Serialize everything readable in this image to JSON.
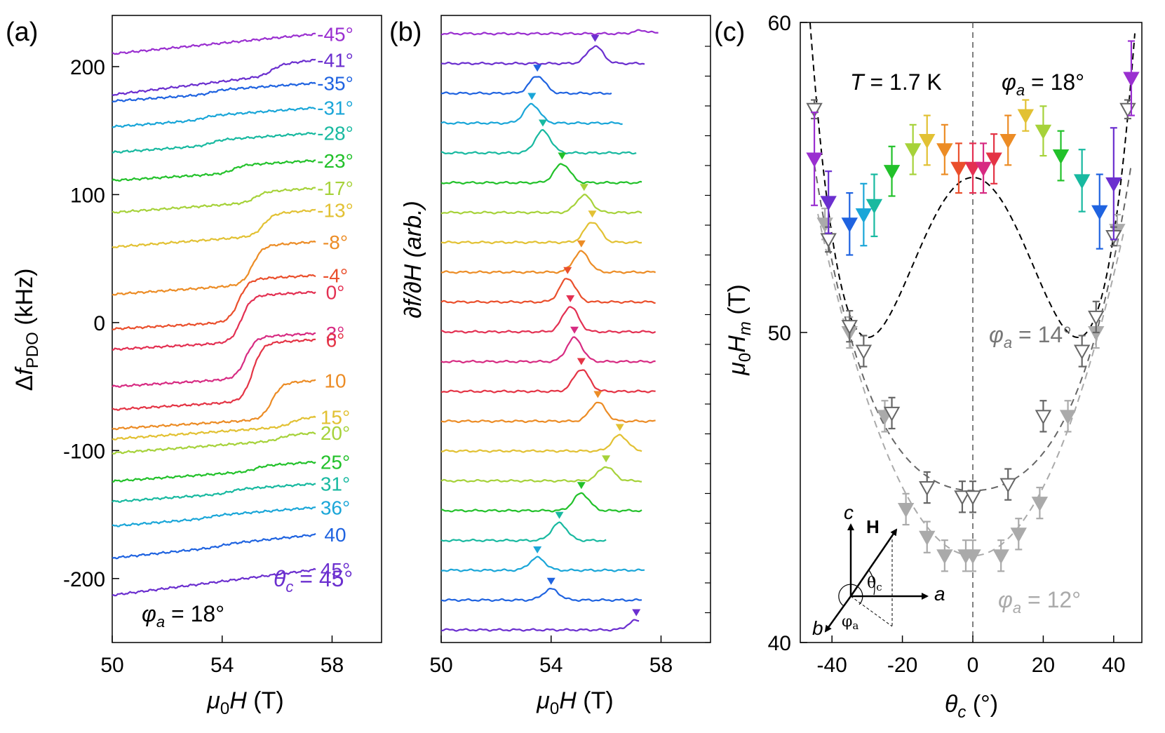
{
  "chart_data": [
    {
      "panel": "(a)",
      "type": "line",
      "xlabel_sym": "μ",
      "xlabel_sub": "0",
      "xlabel_var": "H",
      "xlabel_unit": " (T)",
      "ylabel_pre": "Δ",
      "ylabel_var": "f",
      "ylabel_sub": "PDO",
      "ylabel_unit": " (kHz)",
      "xlim": [
        50,
        59.8
      ],
      "ylim": [
        -250,
        240
      ],
      "xticks": [
        "50",
        "54",
        "58"
      ],
      "xtick_values": [
        50,
        54,
        58
      ],
      "yticks": [
        "-200",
        "-100",
        "0",
        "100",
        "200"
      ],
      "ytick_values": [
        -200,
        -100,
        0,
        100,
        200
      ],
      "annotation_sym": "φ",
      "annotation_sub": "a",
      "annotation_val": " = 18°",
      "theta_label_sym": "θ",
      "theta_label_sub": "c",
      "theta_label_val": " = 45°",
      "series": [
        {
          "label": "-45°",
          "color": "#9a2fd0",
          "offset": 210,
          "slope": 2.1,
          "step": 0,
          "stepx": 55,
          "end": 57.4
        },
        {
          "label": "-41°",
          "color": "#6b2fcf",
          "offset": 178,
          "slope": 2.6,
          "step": 8,
          "stepx": 55.8,
          "end": 57.4
        },
        {
          "label": "-35°",
          "color": "#1f63e0",
          "offset": 173,
          "slope": 1.5,
          "step": 3,
          "stepx": 53.6,
          "end": 57.4
        },
        {
          "label": "-31°",
          "color": "#1aa6d8",
          "offset": 153,
          "slope": 1.6,
          "step": 3,
          "stepx": 53.3,
          "end": 57.4
        },
        {
          "label": "-28°",
          "color": "#18b9a0",
          "offset": 133,
          "slope": 1.5,
          "step": 4,
          "stepx": 53.6,
          "end": 57.4
        },
        {
          "label": "-23°",
          "color": "#22c12a",
          "offset": 111,
          "slope": 1.3,
          "step": 6,
          "stepx": 54.4,
          "end": 57.4
        },
        {
          "label": "-17°",
          "color": "#a6d23a",
          "offset": 86,
          "slope": 1.5,
          "step": 8,
          "stepx": 55.2,
          "end": 57.4
        },
        {
          "label": "-13°",
          "color": "#e2c133",
          "offset": 59,
          "slope": 1.6,
          "step": 17,
          "stepx": 55.5,
          "end": 57.4
        },
        {
          "label": "-8°",
          "color": "#ec8c25",
          "offset": 22,
          "slope": 1.5,
          "step": 30,
          "stepx": 55.1,
          "end": 57.4
        },
        {
          "label": "-4°",
          "color": "#ea4f2c",
          "offset": -5,
          "slope": 1.2,
          "step": 33,
          "stepx": 54.6,
          "end": 57.4
        },
        {
          "label": "0°",
          "color": "#e33052",
          "offset": -21,
          "slope": 1.2,
          "step": 36,
          "stepx": 54.7,
          "end": 57.4
        },
        {
          "label": "3°",
          "color": "#d72b82",
          "offset": -50,
          "slope": 1.3,
          "step": 32,
          "stepx": 54.85,
          "end": 57.4
        },
        {
          "label": "6°",
          "color": "#e43445",
          "offset": -68,
          "slope": 1.3,
          "step": 45,
          "stepx": 55.1,
          "end": 57.4
        },
        {
          "label": "10",
          "color": "#ec8c25",
          "offset": -83,
          "slope": 1.3,
          "step": 28,
          "stepx": 55.8,
          "end": 57.4
        },
        {
          "label": "15°",
          "color": "#e2c133",
          "offset": -91,
          "slope": 1.5,
          "step": 6,
          "stepx": 56.5,
          "end": 57.4
        },
        {
          "label": "20°",
          "color": "#a6d23a",
          "offset": -102,
          "slope": 1.6,
          "step": 4,
          "stepx": 56.1,
          "end": 57.4
        },
        {
          "label": "25°",
          "color": "#22c12a",
          "offset": -124,
          "slope": 1.5,
          "step": 4,
          "stepx": 55.2,
          "end": 57.4
        },
        {
          "label": "31°",
          "color": "#18b9a0",
          "offset": -140,
          "slope": 1.5,
          "step": 3,
          "stepx": 54.3,
          "end": 57.4
        },
        {
          "label": "36°",
          "color": "#1aa6d8",
          "offset": -159,
          "slope": 1.7,
          "step": 2,
          "stepx": 53.5,
          "end": 57.4
        },
        {
          "label": "40",
          "color": "#1f63e0",
          "offset": -184,
          "slope": 2.2,
          "step": 2,
          "stepx": 54.0,
          "end": 57.4
        },
        {
          "label": "45°",
          "color": "#6b2fcf",
          "offset": -213,
          "slope": 2.7,
          "step": 0,
          "stepx": 57,
          "end": 57.4
        }
      ]
    },
    {
      "panel": "(b)",
      "type": "line",
      "xlabel_sym": "μ",
      "xlabel_sub": "0",
      "xlabel_var": "H",
      "xlabel_unit": " (T)",
      "ylabel": "∂f/∂H (arb.)",
      "xlim": [
        50,
        59.8
      ],
      "xticks": [
        "50",
        "54",
        "58"
      ],
      "xtick_values": [
        50,
        54,
        58
      ],
      "series": [
        {
          "color": "#9a2fd0",
          "peak": 57.3,
          "amp": 0.1,
          "end": 57.9,
          "marker": false
        },
        {
          "color": "#6b2fcf",
          "peak": 55.6,
          "amp": 0.55,
          "end": 57.4,
          "marker": true
        },
        {
          "color": "#1f63e0",
          "peak": 53.5,
          "amp": 0.55,
          "end": 56.2,
          "marker": true
        },
        {
          "color": "#1aa6d8",
          "peak": 53.3,
          "amp": 0.6,
          "end": 56.6,
          "marker": true
        },
        {
          "color": "#18b9a0",
          "peak": 53.7,
          "amp": 0.7,
          "end": 57.1,
          "marker": true
        },
        {
          "color": "#22c12a",
          "peak": 54.4,
          "amp": 0.6,
          "end": 57.3,
          "marker": true
        },
        {
          "color": "#a6d23a",
          "peak": 55.2,
          "amp": 0.55,
          "end": 57.3,
          "marker": true
        },
        {
          "color": "#e2c133",
          "peak": 55.5,
          "amp": 0.65,
          "end": 57.3,
          "marker": true
        },
        {
          "color": "#ec8c25",
          "peak": 55.1,
          "amp": 0.65,
          "end": 57.8,
          "marker": true
        },
        {
          "color": "#ea4f2c",
          "peak": 54.6,
          "amp": 0.75,
          "end": 57.8,
          "marker": true
        },
        {
          "color": "#e33052",
          "peak": 54.7,
          "amp": 0.8,
          "end": 57.8,
          "marker": true
        },
        {
          "color": "#d72b82",
          "peak": 54.85,
          "amp": 0.75,
          "end": 57.8,
          "marker": true
        },
        {
          "color": "#e43445",
          "peak": 55.1,
          "amp": 0.7,
          "end": 57.8,
          "marker": true
        },
        {
          "color": "#ec8c25",
          "peak": 55.7,
          "amp": 0.6,
          "end": 57.8,
          "marker": true
        },
        {
          "color": "#e2c133",
          "peak": 56.5,
          "amp": 0.5,
          "end": 57.3,
          "marker": true
        },
        {
          "color": "#a6d23a",
          "peak": 56.0,
          "amp": 0.45,
          "end": 57.3,
          "marker": true
        },
        {
          "color": "#22c12a",
          "peak": 55.1,
          "amp": 0.55,
          "end": 57.3,
          "marker": true
        },
        {
          "color": "#18b9a0",
          "peak": 54.3,
          "amp": 0.55,
          "end": 56.0,
          "marker": true
        },
        {
          "color": "#1aa6d8",
          "peak": 53.5,
          "amp": 0.4,
          "end": 57.4,
          "marker": true
        },
        {
          "color": "#1f63e0",
          "peak": 54.0,
          "amp": 0.35,
          "end": 57.3,
          "marker": true
        },
        {
          "color": "#6b2fcf",
          "peak": 57.1,
          "amp": 0.3,
          "end": 57.2,
          "marker": true
        }
      ]
    },
    {
      "panel": "(c)",
      "type": "scatter",
      "xlabel_sym": "θ",
      "xlabel_sub": "c",
      "xlabel_unit": " (°)",
      "ylabel_sym": "μ",
      "ylabel_sub": "0",
      "ylabel_var": "H",
      "ylabel_sub2": "m",
      "ylabel_unit": " (T)",
      "xlim": [
        -49,
        48
      ],
      "ylim": [
        40,
        60
      ],
      "xticks": [
        "-40",
        "-20",
        "0",
        "20",
        "40"
      ],
      "xtick_values": [
        -40,
        -20,
        0,
        20,
        40
      ],
      "yticks": [
        "40",
        "50",
        "60"
      ],
      "ytick_values": [
        40,
        50,
        60
      ],
      "T_sym": "T",
      "T_val": " = 1.7 K",
      "phi_sym": "φ",
      "phi_sub": "a",
      "series": [
        {
          "name": "φa = 18°",
          "phi_val": " = 18°",
          "color": "#000000",
          "filled": true,
          "coef": [
            55.0,
            0,
            -0.0116,
            0,
            6.52e-06
          ],
          "curve_range": [
            -47.5,
            46
          ],
          "points": [
            {
              "x": -45,
              "y": 55.6,
              "err": 1.5,
              "color": "#9a2fd0"
            },
            {
              "x": -41,
              "y": 54.2,
              "err": 1.0,
              "color": "#6b2fcf"
            },
            {
              "x": -35,
              "y": 53.5,
              "err": 1.0,
              "color": "#1f63e0"
            },
            {
              "x": -31,
              "y": 53.8,
              "err": 1.0,
              "color": "#1aa6d8"
            },
            {
              "x": -28,
              "y": 54.1,
              "err": 1.0,
              "color": "#18b9a0"
            },
            {
              "x": -23,
              "y": 55.2,
              "err": 0.8,
              "color": "#22c12a"
            },
            {
              "x": -17,
              "y": 55.9,
              "err": 0.8,
              "color": "#a6d23a"
            },
            {
              "x": -13,
              "y": 56.2,
              "err": 0.8,
              "color": "#e2c133"
            },
            {
              "x": -8,
              "y": 55.9,
              "err": 0.8,
              "color": "#ec8c25"
            },
            {
              "x": -4,
              "y": 55.3,
              "err": 0.8,
              "color": "#ea4f2c"
            },
            {
              "x": 0,
              "y": 55.3,
              "err": 0.8,
              "color": "#e33052"
            },
            {
              "x": 3,
              "y": 55.3,
              "err": 0.8,
              "color": "#d72b82"
            },
            {
              "x": 6,
              "y": 55.6,
              "err": 0.8,
              "color": "#e43445"
            },
            {
              "x": 10,
              "y": 56.2,
              "err": 0.8,
              "color": "#ec8c25"
            },
            {
              "x": 15,
              "y": 57.0,
              "err": 0.5,
              "color": "#e2c133"
            },
            {
              "x": 20,
              "y": 56.5,
              "err": 0.8,
              "color": "#a6d23a"
            },
            {
              "x": 25,
              "y": 55.7,
              "err": 0.8,
              "color": "#22c12a"
            },
            {
              "x": 31,
              "y": 54.9,
              "err": 1.0,
              "color": "#18b9a0"
            },
            {
              "x": 36,
              "y": 53.9,
              "err": 1.2,
              "color": "#1f63e0"
            },
            {
              "x": 40,
              "y": 54.8,
              "err": 1.8,
              "color": "#6b2fcf"
            },
            {
              "x": 45,
              "y": 58.2,
              "err": 1.2,
              "color": "#9a2fd0"
            }
          ]
        },
        {
          "name": "φa = 14°",
          "phi_val": " = 14°",
          "color": "#666666",
          "filled": false,
          "coef": [
            44.9,
            0,
            0.0025,
            0,
            1.33e-06
          ],
          "curve_range": [
            -45,
            45
          ],
          "points": [
            {
              "x": -45,
              "y": 57.2,
              "err": 0.3
            },
            {
              "x": -41,
              "y": 53.0,
              "err": 0.4
            },
            {
              "x": -35,
              "y": 50.2,
              "err": 0.5
            },
            {
              "x": -31,
              "y": 49.4,
              "err": 0.5
            },
            {
              "x": -23,
              "y": 47.4,
              "err": 0.5
            },
            {
              "x": -13,
              "y": 45.0,
              "err": 0.5
            },
            {
              "x": -3,
              "y": 44.7,
              "err": 0.5
            },
            {
              "x": 0,
              "y": 44.7,
              "err": 0.5
            },
            {
              "x": 10,
              "y": 45.1,
              "err": 0.5
            },
            {
              "x": 20,
              "y": 47.3,
              "err": 0.5
            },
            {
              "x": 31,
              "y": 49.4,
              "err": 0.5
            },
            {
              "x": 35,
              "y": 50.5,
              "err": 0.5
            },
            {
              "x": 40,
              "y": 53.1,
              "err": 0.3
            },
            {
              "x": 44,
              "y": 57.2,
              "err": 0.3
            }
          ]
        },
        {
          "name": "φa = 12°",
          "phi_val": " = 12°",
          "color": "#aaaaaa",
          "filled": true,
          "coef": [
            42.8,
            0,
            0.0055,
            0,
            1e-07
          ],
          "curve_range": [
            -44,
            43
          ],
          "points": [
            {
              "x": -42,
              "y": 53.5,
              "err": 0.5
            },
            {
              "x": -35,
              "y": 50.0,
              "err": 0.5
            },
            {
              "x": -25,
              "y": 47.3,
              "err": 0.5
            },
            {
              "x": -19,
              "y": 44.3,
              "err": 0.5
            },
            {
              "x": -13,
              "y": 43.4,
              "err": 0.5
            },
            {
              "x": -8,
              "y": 42.8,
              "err": 0.5
            },
            {
              "x": -2,
              "y": 42.8,
              "err": 0.5
            },
            {
              "x": 0,
              "y": 42.8,
              "err": 0.5
            },
            {
              "x": 8,
              "y": 42.8,
              "err": 0.5
            },
            {
              "x": 13,
              "y": 43.5,
              "err": 0.5
            },
            {
              "x": 19,
              "y": 44.5,
              "err": 0.5
            },
            {
              "x": 27,
              "y": 47.3,
              "err": 0.5
            },
            {
              "x": 35,
              "y": 50.0,
              "err": 0.5
            },
            {
              "x": 41,
              "y": 53.3,
              "err": 0.5
            }
          ]
        }
      ],
      "inset": {
        "c": "c",
        "H": "H",
        "a": "a",
        "b": "b",
        "theta": "θ",
        "theta_sub": "c",
        "phi": "φ",
        "phi_sub": "a"
      }
    }
  ]
}
